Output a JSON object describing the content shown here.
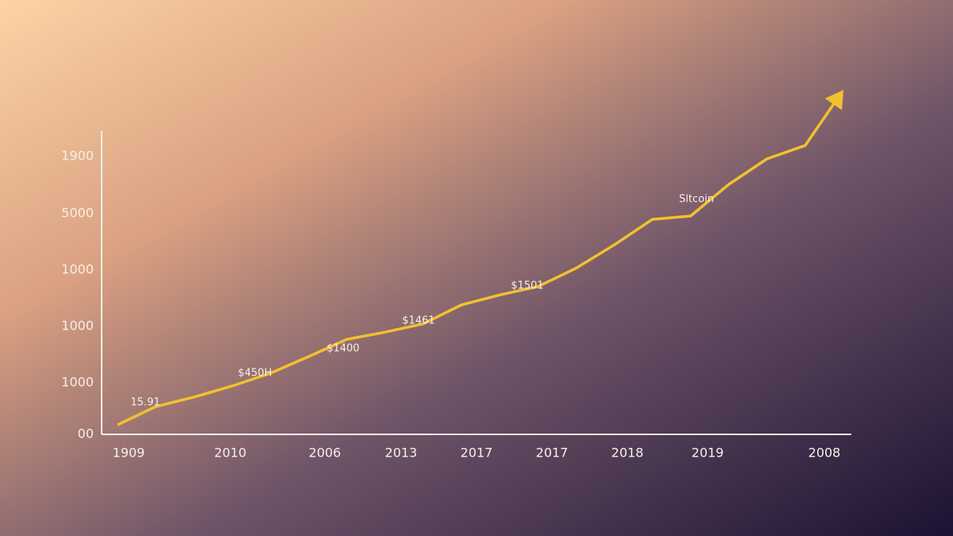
{
  "chart_data": {
    "type": "line",
    "y_labels": [
      "00",
      "1000",
      "1000",
      "1000",
      "5000",
      "1900"
    ],
    "x_labels": [
      "1909",
      "2010",
      "2006",
      "2013",
      "2017",
      "2017",
      "2018",
      "2019",
      "2008"
    ],
    "ylim": [
      0,
      5.46
    ],
    "color": "#f2c12e",
    "values": [
      0.17,
      0.5,
      0.67,
      0.87,
      1.1,
      1.4,
      1.71,
      1.84,
      1.99,
      2.33,
      2.51,
      2.66,
      2.99,
      3.41,
      3.87,
      3.93,
      4.5,
      4.96,
      5.2,
      6.2
    ],
    "annotations": [
      "15.91",
      "$450H",
      "$1400",
      "$1461",
      "$1501",
      "Sltcoin"
    ]
  }
}
